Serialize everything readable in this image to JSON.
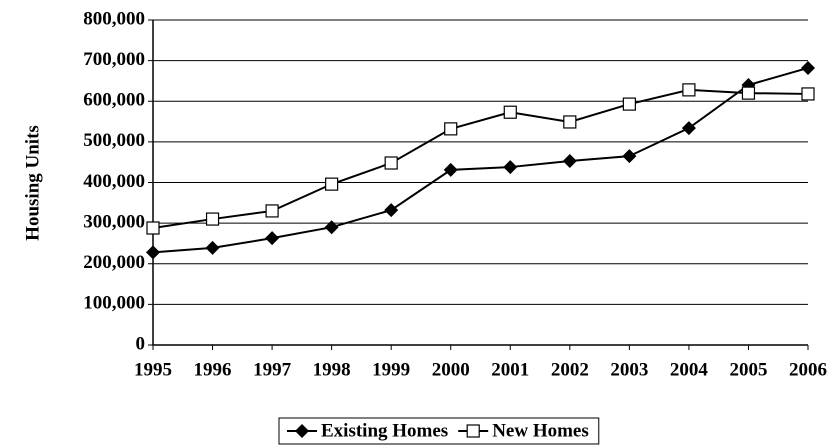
{
  "chart_data": {
    "type": "line",
    "y_label": "Housing Units",
    "x": [
      1995,
      1996,
      1997,
      1998,
      1999,
      2000,
      2001,
      2002,
      2003,
      2004,
      2005,
      2006
    ],
    "xlim": [
      1995,
      2006
    ],
    "xticks": [
      1995,
      1996,
      1997,
      1998,
      1999,
      2000,
      2001,
      2002,
      2003,
      2004,
      2005,
      2006
    ],
    "series": [
      {
        "name": "Existing Homes",
        "color": "#000000",
        "marker": "diamond",
        "values": [
          228000,
          239000,
          263000,
          290000,
          332000,
          431000,
          438000,
          453000,
          465000,
          534000,
          640000,
          682000
        ]
      },
      {
        "name": "New Homes",
        "color": "#000000",
        "marker": "square",
        "values": [
          288000,
          310000,
          330000,
          396000,
          448000,
          532000,
          573000,
          549000,
          593000,
          628000,
          620000,
          618000
        ]
      }
    ],
    "ylim": [
      0,
      800000
    ],
    "yticks": [
      0,
      {
        "value": 100000,
        "label": "100,000"
      },
      {
        "value": 200000,
        "label": "200,000"
      },
      {
        "value": 300000,
        "label": "300,000"
      },
      {
        "value": 400000,
        "label": "400,000"
      },
      {
        "value": 500000,
        "label": "500,000"
      },
      {
        "value": 600000,
        "label": "600,000"
      },
      {
        "value": 700000,
        "label": "700,000"
      },
      {
        "value": 800000,
        "label": "800,000"
      }
    ],
    "grid": true,
    "legend": "bottom"
  }
}
